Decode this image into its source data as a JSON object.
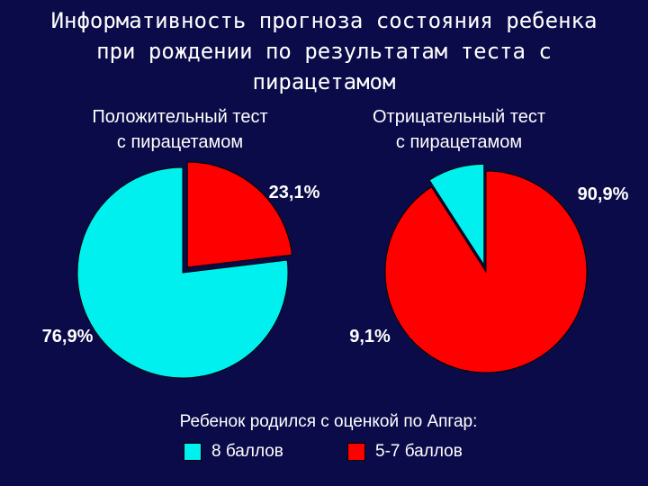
{
  "title": "Информативность прогноза состояния ребенка\nпри рождении по результатам теста с\nпирацетамом",
  "legend": {
    "title": "Ребенок родился с оценкой по Апгар:",
    "items": [
      {
        "label": "8 баллов",
        "color": "#00f0f0"
      },
      {
        "label": "5-7 баллов",
        "color": "#ff0000"
      }
    ]
  },
  "chart_data": [
    {
      "type": "pie",
      "title": "Положительный тест\nс пирацетамом",
      "categories": [
        "8 баллов",
        "5-7 баллов"
      ],
      "values": [
        76.9,
        23.1
      ],
      "labels": [
        "76,9%",
        "23,1%"
      ],
      "colors": [
        "#00f0f0",
        "#ff0000"
      ],
      "exploded": [
        false,
        true
      ]
    },
    {
      "type": "pie",
      "title": "Отрицательный тест\nс пирацетамом",
      "categories": [
        "8 баллов",
        "5-7 баллов"
      ],
      "values": [
        9.1,
        90.9
      ],
      "labels": [
        "9,1%",
        "90,9%"
      ],
      "colors": [
        "#00f0f0",
        "#ff0000"
      ],
      "exploded": [
        true,
        false
      ]
    }
  ]
}
